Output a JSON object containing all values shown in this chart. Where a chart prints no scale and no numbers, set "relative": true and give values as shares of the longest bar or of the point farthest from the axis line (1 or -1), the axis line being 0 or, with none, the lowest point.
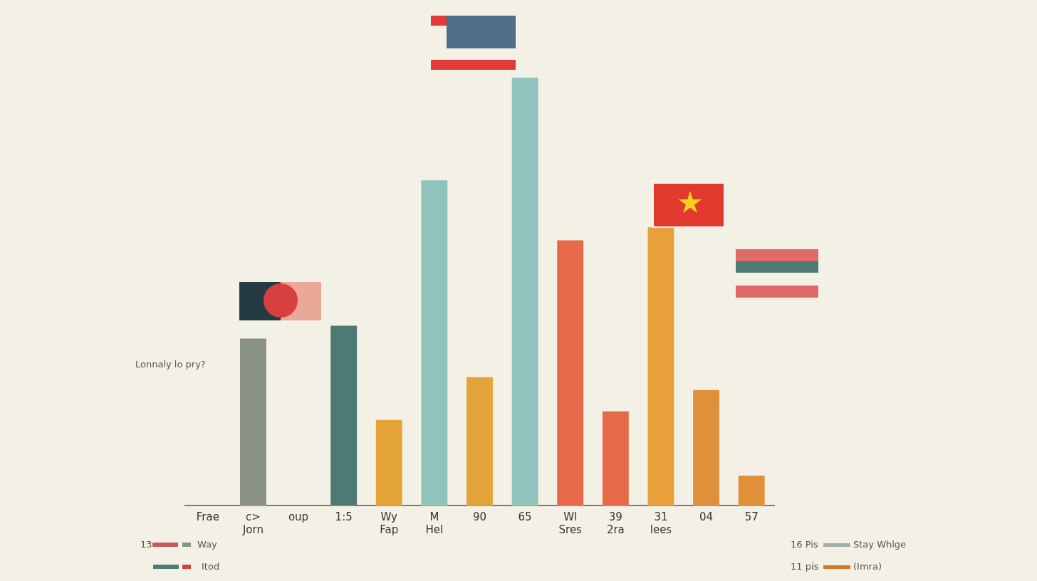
{
  "chart_data": {
    "type": "bar",
    "relative": true,
    "categories": [
      "Frae",
      "c>\nJorn",
      "oup",
      "1:5",
      "Wy\nFap",
      "M\nHel",
      "90",
      "65",
      "Wl\nSres",
      "39\n2ra",
      "31\nlees",
      "04",
      "57"
    ],
    "values": [
      null,
      0.39,
      null,
      0.42,
      0.2,
      0.76,
      0.3,
      1,
      0.62,
      0.22,
      0.65,
      0.27,
      0.07
    ],
    "colors": [
      "#8a9383",
      "#8a9383",
      "#8a9383",
      "#4d7a73",
      "#e5a43a",
      "#8fc3bb",
      "#e5a43a",
      "#8fc3bb",
      "#e66a4a",
      "#e66a4a",
      "#e8a03a",
      "#e0903a",
      "#e0903a"
    ],
    "grid": false,
    "legend": false,
    "annotations": [
      "Lonnaly lo pry?",
      "13",
      "Way",
      "Itod",
      "16 Pis",
      "Stay Whlge",
      "11 pis",
      "(Imra)"
    ]
  }
}
